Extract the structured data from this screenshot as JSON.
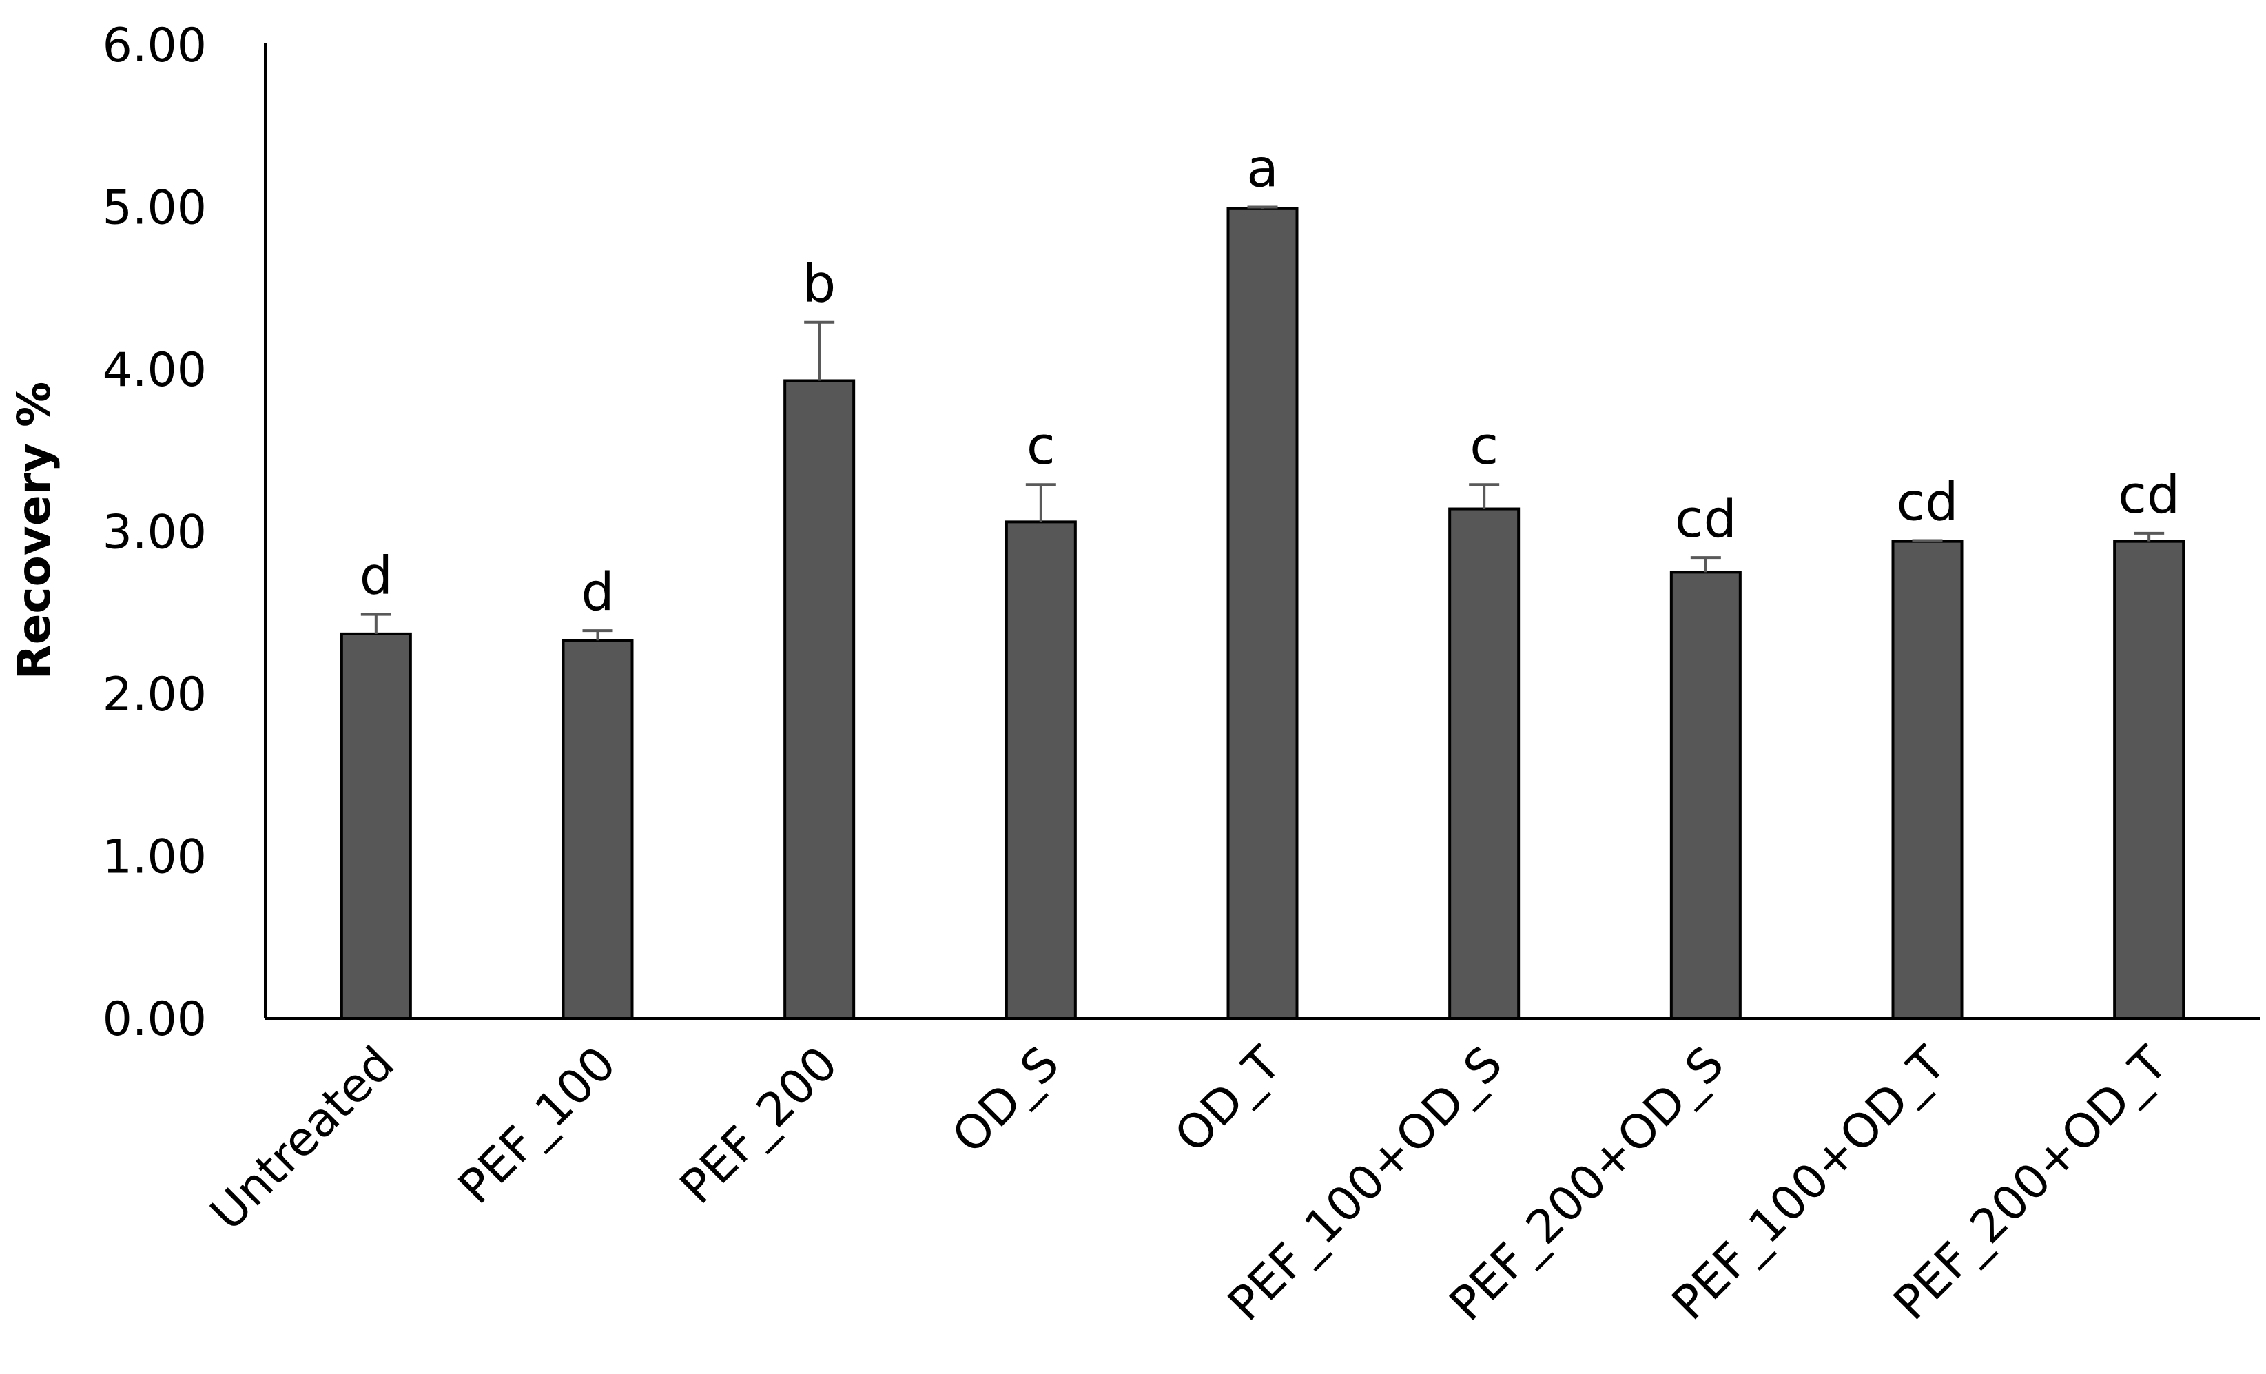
{
  "chart_data": {
    "type": "bar",
    "title": "",
    "xlabel": "",
    "ylabel": "Recovery %",
    "ylim": [
      0,
      6
    ],
    "yticks": [
      "0.00",
      "1.00",
      "2.00",
      "3.00",
      "4.00",
      "5.00",
      "6.00"
    ],
    "grid": false,
    "legend": "none",
    "categories": [
      "Untreated",
      "PEF_100",
      "PEF_200",
      "OD_S",
      "OD_T",
      "PEF_100+OD_S",
      "PEF_200+OD_S",
      "PEF_100+OD_T",
      "PEF_200+OD_T"
    ],
    "series": [
      {
        "values": [
          2.37,
          2.33,
          3.93,
          3.06,
          4.99,
          3.14,
          2.75,
          2.94,
          2.94
        ],
        "error": [
          0.12,
          0.06,
          0.36,
          0.23,
          0.01,
          0.15,
          0.09,
          0.005,
          0.05
        ]
      }
    ],
    "significance_letters": [
      "d",
      "d",
      "b",
      "c",
      "a",
      "c",
      "cd",
      "cd",
      "cd"
    ],
    "bar_color": "#575757",
    "error_bar_color": "#595959"
  }
}
